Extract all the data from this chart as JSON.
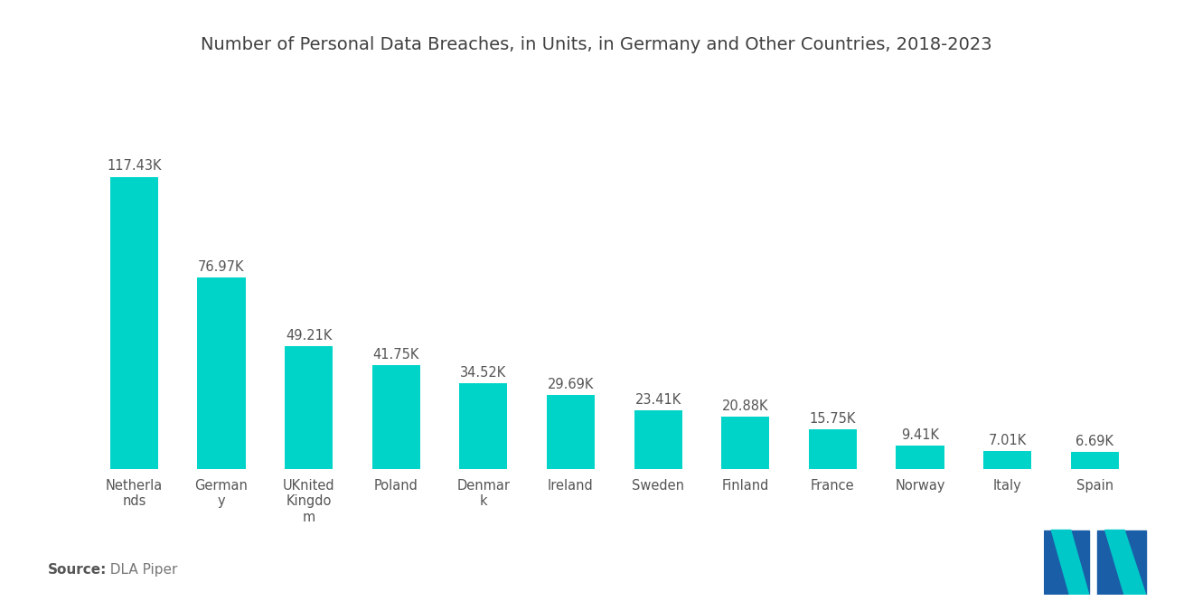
{
  "title": "Number of Personal Data Breaches, in Units, in Germany and Other Countries, 2018-2023",
  "categories": [
    "Netherla\nnds",
    "German\ny",
    "UKnited\nKingdo\nm",
    "Poland",
    "Denmar\nk",
    "Ireland",
    "Sweden",
    "Finland",
    "France",
    "Norway",
    "Italy",
    "Spain"
  ],
  "values": [
    117.43,
    76.97,
    49.21,
    41.75,
    34.52,
    29.69,
    23.41,
    20.88,
    15.75,
    9.41,
    7.01,
    6.69
  ],
  "labels": [
    "117.43K",
    "76.97K",
    "49.21K",
    "41.75K",
    "34.52K",
    "29.69K",
    "23.41K",
    "20.88K",
    "15.75K",
    "9.41K",
    "7.01K",
    "6.69K"
  ],
  "bar_color": "#00D4C8",
  "background_color": "#ffffff",
  "title_color": "#404040",
  "label_color": "#555555",
  "source_label": "Source:",
  "source_value": "  DLA Piper",
  "source_color": "#777777",
  "source_bold_color": "#555555",
  "title_fontsize": 14,
  "label_fontsize": 10.5,
  "tick_fontsize": 10.5,
  "source_fontsize": 11,
  "ylim": [
    0,
    145
  ],
  "bar_width": 0.55,
  "logo_blue": "#1A5EA8",
  "logo_teal": "#00C8C8"
}
